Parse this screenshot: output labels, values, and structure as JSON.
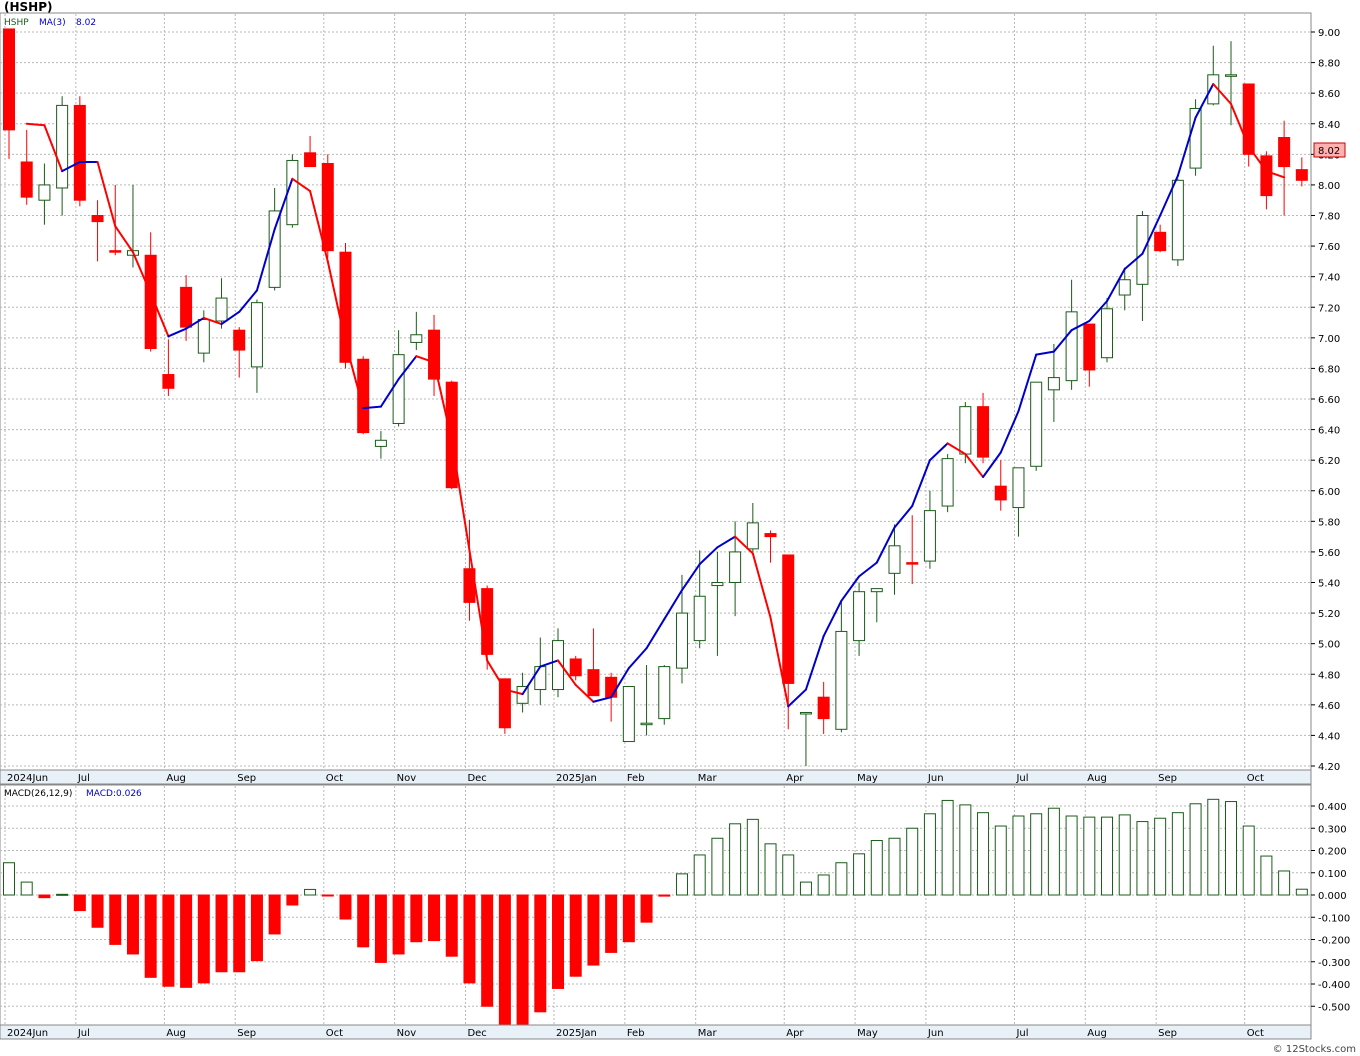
{
  "page": {
    "title": "(HSHP)",
    "copyright": "© 12Stocks.com"
  },
  "colors": {
    "up": "#1a5c1a",
    "down": "#ff0000",
    "ma_up": "#0000cc",
    "ma_down": "#ff0000",
    "grid": "#b8b8b8",
    "tag_bg": "#ffb0b0",
    "axis_strip": "#e9f1f8"
  },
  "price_panel": {
    "legend": {
      "symbol": "HSHP",
      "ma_label": "MA(3)",
      "ma_value": "8.02"
    },
    "last_price": "8.02",
    "y_ticks": [
      "4.20",
      "4.40",
      "4.60",
      "4.80",
      "5.00",
      "5.20",
      "5.40",
      "5.60",
      "5.80",
      "6.00",
      "6.20",
      "6.40",
      "6.60",
      "6.80",
      "7.00",
      "7.20",
      "7.40",
      "7.60",
      "7.80",
      "8.00",
      "8.20",
      "8.40",
      "8.60",
      "8.80",
      "9.00"
    ]
  },
  "macd_panel": {
    "legend": {
      "name": "MACD(26,12,9)",
      "value_label": "MACD:0.026"
    },
    "y_ticks": [
      "-0.500",
      "-0.400",
      "-0.300",
      "-0.200",
      "-0.100",
      "0.000",
      "0.100",
      "0.200",
      "0.300",
      "0.400"
    ]
  },
  "x_axis_labels": [
    {
      "label": "2024Jun",
      "i": 0
    },
    {
      "label": "Jul",
      "i": 4
    },
    {
      "label": "Aug",
      "i": 9
    },
    {
      "label": "Sep",
      "i": 13
    },
    {
      "label": "Oct",
      "i": 18
    },
    {
      "label": "Nov",
      "i": 22
    },
    {
      "label": "Dec",
      "i": 26
    },
    {
      "label": "2025Jan",
      "i": 31
    },
    {
      "label": "Feb",
      "i": 35
    },
    {
      "label": "Mar",
      "i": 39
    },
    {
      "label": "Apr",
      "i": 44
    },
    {
      "label": "May",
      "i": 48
    },
    {
      "label": "Jun",
      "i": 52
    },
    {
      "label": "Jul",
      "i": 57
    },
    {
      "label": "Aug",
      "i": 61
    },
    {
      "label": "Sep",
      "i": 65
    },
    {
      "label": "Oct",
      "i": 70
    }
  ],
  "chart_data": [
    {
      "type": "candlestick",
      "title": "(HSHP)",
      "series_name": "HSHP",
      "period": "weekly",
      "ylim": [
        4.2,
        9.0
      ],
      "candles": [
        {
          "o": 9.02,
          "h": 9.02,
          "l": 8.17,
          "c": 8.36
        },
        {
          "o": 8.15,
          "h": 8.36,
          "l": 7.87,
          "c": 7.92
        },
        {
          "o": 7.9,
          "h": 8.14,
          "l": 7.74,
          "c": 8.0
        },
        {
          "o": 7.98,
          "h": 8.58,
          "l": 7.8,
          "c": 8.52
        },
        {
          "o": 8.52,
          "h": 8.58,
          "l": 7.86,
          "c": 7.9
        },
        {
          "o": 7.8,
          "h": 7.9,
          "l": 7.5,
          "c": 7.76
        },
        {
          "o": 7.57,
          "h": 8.0,
          "l": 7.54,
          "c": 7.56
        },
        {
          "o": 7.54,
          "h": 8.0,
          "l": 7.46,
          "c": 7.57
        },
        {
          "o": 7.54,
          "h": 7.69,
          "l": 6.91,
          "c": 6.93
        },
        {
          "o": 6.76,
          "h": 6.99,
          "l": 6.62,
          "c": 6.67
        },
        {
          "o": 7.33,
          "h": 7.41,
          "l": 6.98,
          "c": 7.07
        },
        {
          "o": 6.9,
          "h": 7.18,
          "l": 6.84,
          "c": 7.12
        },
        {
          "o": 7.11,
          "h": 7.39,
          "l": 7.06,
          "c": 7.26
        },
        {
          "o": 7.05,
          "h": 7.07,
          "l": 6.74,
          "c": 6.92
        },
        {
          "o": 6.81,
          "h": 7.25,
          "l": 6.64,
          "c": 7.23
        },
        {
          "o": 7.33,
          "h": 7.98,
          "l": 7.31,
          "c": 7.83
        },
        {
          "o": 7.74,
          "h": 8.2,
          "l": 7.72,
          "c": 8.16
        },
        {
          "o": 8.21,
          "h": 8.32,
          "l": 8.12,
          "c": 8.12
        },
        {
          "o": 8.14,
          "h": 8.2,
          "l": 7.52,
          "c": 7.57
        },
        {
          "o": 7.56,
          "h": 7.62,
          "l": 6.8,
          "c": 6.84
        },
        {
          "o": 6.86,
          "h": 6.88,
          "l": 6.37,
          "c": 6.38
        },
        {
          "o": 6.29,
          "h": 6.39,
          "l": 6.21,
          "c": 6.33
        },
        {
          "o": 6.44,
          "h": 7.05,
          "l": 6.42,
          "c": 6.89
        },
        {
          "o": 6.97,
          "h": 7.17,
          "l": 6.92,
          "c": 7.02
        },
        {
          "o": 7.05,
          "h": 7.15,
          "l": 6.62,
          "c": 6.73
        },
        {
          "o": 6.71,
          "h": 6.72,
          "l": 6.01,
          "c": 6.02
        },
        {
          "o": 5.49,
          "h": 5.81,
          "l": 5.15,
          "c": 5.27
        },
        {
          "o": 5.36,
          "h": 5.38,
          "l": 4.83,
          "c": 4.93
        },
        {
          "o": 4.77,
          "h": 4.77,
          "l": 4.41,
          "c": 4.45
        },
        {
          "o": 4.61,
          "h": 4.81,
          "l": 4.55,
          "c": 4.72
        },
        {
          "o": 4.7,
          "h": 5.04,
          "l": 4.6,
          "c": 4.85
        },
        {
          "o": 4.7,
          "h": 5.1,
          "l": 4.65,
          "c": 5.02
        },
        {
          "o": 4.9,
          "h": 4.92,
          "l": 4.76,
          "c": 4.79
        },
        {
          "o": 4.83,
          "h": 5.1,
          "l": 4.68,
          "c": 4.66
        },
        {
          "o": 4.78,
          "h": 4.81,
          "l": 4.49,
          "c": 4.65
        },
        {
          "o": 4.36,
          "h": 4.72,
          "l": 4.36,
          "c": 4.72
        },
        {
          "o": 4.48,
          "h": 4.86,
          "l": 4.4,
          "c": 4.48
        },
        {
          "o": 4.51,
          "h": 4.86,
          "l": 4.47,
          "c": 4.85
        },
        {
          "o": 4.84,
          "h": 5.45,
          "l": 4.74,
          "c": 5.2
        },
        {
          "o": 5.02,
          "h": 5.61,
          "l": 4.97,
          "c": 5.31
        },
        {
          "o": 5.38,
          "h": 5.6,
          "l": 4.92,
          "c": 5.4
        },
        {
          "o": 5.4,
          "h": 5.8,
          "l": 5.18,
          "c": 5.6
        },
        {
          "o": 5.62,
          "h": 5.92,
          "l": 5.6,
          "c": 5.79
        },
        {
          "o": 5.72,
          "h": 5.74,
          "l": 5.53,
          "c": 5.7
        },
        {
          "o": 5.58,
          "h": 5.58,
          "l": 4.44,
          "c": 4.74
        },
        {
          "o": 4.55,
          "h": 4.55,
          "l": 4.2,
          "c": 4.55
        },
        {
          "o": 4.65,
          "h": 4.75,
          "l": 4.41,
          "c": 4.51
        },
        {
          "o": 4.44,
          "h": 5.28,
          "l": 4.42,
          "c": 5.08
        },
        {
          "o": 5.02,
          "h": 5.4,
          "l": 4.92,
          "c": 5.34
        },
        {
          "o": 5.34,
          "h": 5.36,
          "l": 5.14,
          "c": 5.36
        },
        {
          "o": 5.46,
          "h": 5.78,
          "l": 5.32,
          "c": 5.64
        },
        {
          "o": 5.53,
          "h": 5.84,
          "l": 5.39,
          "c": 5.52
        },
        {
          "o": 5.54,
          "h": 6.0,
          "l": 5.49,
          "c": 5.87
        },
        {
          "o": 5.9,
          "h": 6.24,
          "l": 5.86,
          "c": 6.21
        },
        {
          "o": 6.24,
          "h": 6.58,
          "l": 6.18,
          "c": 6.55
        },
        {
          "o": 6.55,
          "h": 6.64,
          "l": 6.18,
          "c": 6.22
        },
        {
          "o": 6.03,
          "h": 6.2,
          "l": 5.87,
          "c": 5.94
        },
        {
          "o": 5.89,
          "h": 6.11,
          "l": 5.7,
          "c": 6.15
        },
        {
          "o": 6.16,
          "h": 6.71,
          "l": 6.13,
          "c": 6.71
        },
        {
          "o": 6.66,
          "h": 6.96,
          "l": 6.45,
          "c": 6.74
        },
        {
          "o": 6.72,
          "h": 7.38,
          "l": 6.66,
          "c": 7.17
        },
        {
          "o": 7.09,
          "h": 7.09,
          "l": 6.68,
          "c": 6.79
        },
        {
          "o": 6.87,
          "h": 7.26,
          "l": 6.84,
          "c": 7.19
        },
        {
          "o": 7.28,
          "h": 7.46,
          "l": 7.18,
          "c": 7.38
        },
        {
          "o": 7.35,
          "h": 7.83,
          "l": 7.11,
          "c": 7.8
        },
        {
          "o": 7.69,
          "h": 7.74,
          "l": 7.56,
          "c": 7.57
        },
        {
          "o": 7.51,
          "h": 8.04,
          "l": 7.47,
          "c": 8.03
        },
        {
          "o": 8.11,
          "h": 8.56,
          "l": 8.06,
          "c": 8.5
        },
        {
          "o": 8.53,
          "h": 8.91,
          "l": 8.52,
          "c": 8.72
        },
        {
          "o": 8.72,
          "h": 8.94,
          "l": 8.39,
          "c": 8.72
        },
        {
          "o": 8.66,
          "h": 8.66,
          "l": 8.12,
          "c": 8.2
        },
        {
          "o": 8.19,
          "h": 8.22,
          "l": 7.84,
          "c": 7.93
        },
        {
          "o": 8.31,
          "h": 8.42,
          "l": 7.8,
          "c": 8.12
        },
        {
          "o": 8.1,
          "h": 8.18,
          "l": 7.99,
          "c": 8.03
        }
      ],
      "ma3": [
        8.4,
        8.39,
        8.09,
        8.15,
        8.15,
        7.73,
        7.56,
        7.29,
        7.01,
        7.06,
        7.13,
        7.09,
        7.17,
        7.31,
        7.71,
        8.04,
        7.96,
        7.5,
        6.97,
        6.54,
        6.55,
        6.73,
        6.88,
        6.84,
        6.33,
        5.61,
        4.89,
        4.7,
        4.67,
        4.85,
        4.89,
        4.73,
        4.62,
        4.65,
        4.84,
        4.97,
        5.16,
        5.35,
        5.52,
        5.63,
        5.7,
        5.59,
        5.17,
        4.59,
        4.7,
        5.05,
        5.28,
        5.44,
        5.53,
        5.76,
        5.9,
        6.2,
        6.31,
        6.24,
        6.09,
        6.25,
        6.52,
        6.89,
        6.91,
        7.05,
        7.11,
        7.24,
        7.45,
        7.55,
        7.8,
        8.06,
        8.44,
        8.66,
        8.53,
        8.25,
        8.09,
        8.05
      ],
      "ma3_start": 1
    },
    {
      "type": "bar",
      "title": "MACD(26,12,9)",
      "series_name": "MACD",
      "ylim": [
        -0.56,
        0.46
      ],
      "values": [
        0.145,
        0.058,
        -0.012,
        0.003,
        -0.07,
        -0.145,
        -0.222,
        -0.265,
        -0.37,
        -0.41,
        -0.415,
        -0.395,
        -0.345,
        -0.345,
        -0.295,
        -0.175,
        -0.045,
        0.025,
        -0.003,
        -0.108,
        -0.233,
        -0.303,
        -0.265,
        -0.21,
        -0.205,
        -0.275,
        -0.395,
        -0.5,
        -0.58,
        -0.58,
        -0.525,
        -0.42,
        -0.365,
        -0.315,
        -0.258,
        -0.21,
        -0.122,
        -0.005,
        0.095,
        0.18,
        0.255,
        0.32,
        0.34,
        0.23,
        0.18,
        0.058,
        0.09,
        0.145,
        0.185,
        0.245,
        0.255,
        0.3,
        0.365,
        0.425,
        0.405,
        0.37,
        0.31,
        0.355,
        0.365,
        0.39,
        0.355,
        0.35,
        0.35,
        0.36,
        0.33,
        0.345,
        0.37,
        0.41,
        0.43,
        0.42,
        0.31,
        0.175,
        0.108,
        0.026
      ]
    }
  ]
}
